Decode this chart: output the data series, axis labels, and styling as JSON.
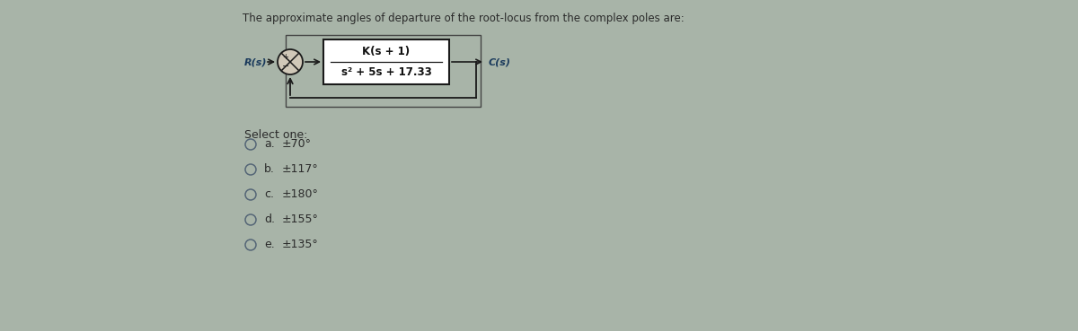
{
  "title": "The approximate angles of departure of the root-locus from the complex poles are:",
  "title_fontsize": 8.5,
  "title_color": "#2a2a2a",
  "bg_color": "#a8b4a8",
  "select_one_text": "Select one:",
  "options": [
    {
      "label": "a.",
      "value": "±70°"
    },
    {
      "label": "b.",
      "value": "±117°"
    },
    {
      "label": "c.",
      "value": "±180°"
    },
    {
      "label": "d.",
      "value": "±155°"
    },
    {
      "label": "e.",
      "value": "±135°"
    }
  ],
  "tf_numerator": "K(s + 1)",
  "tf_denominator": "s² + 5s + 17.33",
  "rs_label": "R(s)",
  "cs_label": "C(s)",
  "text_color": "#1a3a5c",
  "option_fontsize": 9,
  "select_fontsize": 9,
  "diagram_text_color": "#1a1a1a"
}
